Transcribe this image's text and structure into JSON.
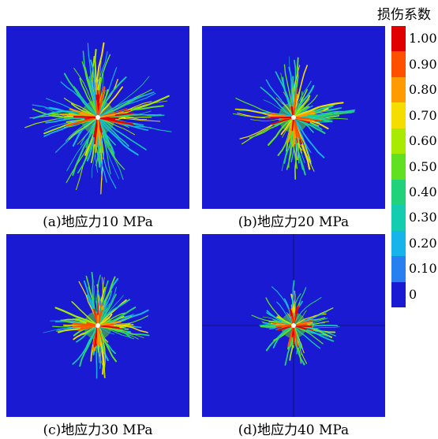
{
  "colorbar": {
    "title": "损伤系数",
    "ticks": [
      "1.00",
      "0.90",
      "0.80",
      "0.70",
      "0.60",
      "0.50",
      "0.40",
      "0.30",
      "0.20",
      "0.10",
      "0"
    ],
    "colors": [
      "#e00000",
      "#ff5000",
      "#ff9a00",
      "#f5dd00",
      "#a8ea00",
      "#5fe020",
      "#22d27a",
      "#14cdb0",
      "#16b4ea",
      "#2880f0",
      "#1a1ad2"
    ]
  },
  "panels": [
    {
      "caption": "(a)地应力10 MPa",
      "damage_extent": 1.0
    },
    {
      "caption": "(b)地应力20 MPa",
      "damage_extent": 0.8
    },
    {
      "caption": "(c)地应力30 MPa",
      "damage_extent": 0.72
    },
    {
      "caption": "(d)地应力40 MPa",
      "damage_extent": 0.6
    }
  ]
}
